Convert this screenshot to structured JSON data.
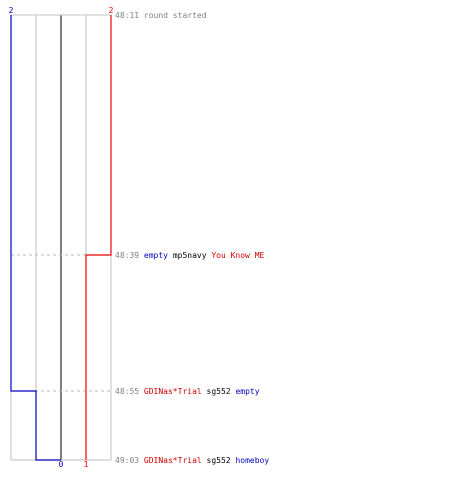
{
  "chart_data": {
    "type": "line",
    "description_free": true,
    "teams": [
      {
        "key": "blue",
        "color": "#0000bb",
        "top_label": "2",
        "bottom_label": "0"
      },
      {
        "key": "red",
        "color": "#ee0000",
        "top_label": "2",
        "bottom_label": "1"
      }
    ],
    "x_scale": {
      "min": -2,
      "max": 2,
      "grid": [
        -2,
        -1,
        0,
        1,
        2
      ]
    },
    "events": [
      {
        "time": "48:11",
        "blue": 2,
        "red": 2,
        "parts": [
          {
            "text": "round started",
            "color": "time"
          }
        ]
      },
      {
        "time": "48:39",
        "blue": 2,
        "red": 1,
        "parts": [
          {
            "text": "empty",
            "color": "blue"
          },
          {
            "text": "mp5navy",
            "color": "black"
          },
          {
            "text": "You Know ME",
            "color": "red"
          }
        ]
      },
      {
        "time": "48:55",
        "blue": 1,
        "red": 1,
        "parts": [
          {
            "text": "GDINas*Trial",
            "color": "red"
          },
          {
            "text": "sg552",
            "color": "black"
          },
          {
            "text": "empty",
            "color": "blue"
          }
        ]
      },
      {
        "time": "49:03",
        "blue": 0,
        "red": 1,
        "parts": [
          {
            "text": "GDINas*Trial",
            "color": "red"
          },
          {
            "text": "sg552",
            "color": "black"
          },
          {
            "text": "homeboy",
            "color": "blue"
          }
        ]
      }
    ]
  }
}
